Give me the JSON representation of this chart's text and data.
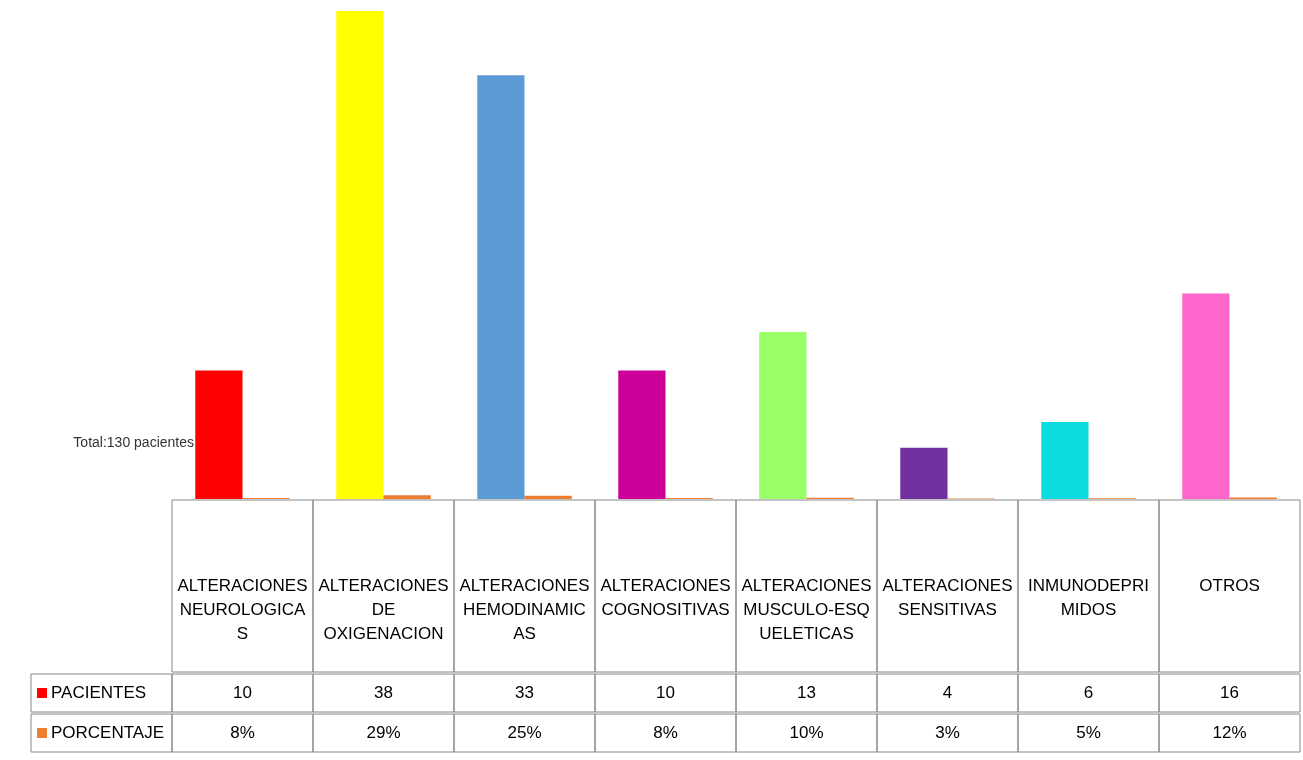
{
  "chart_data": {
    "type": "bar",
    "categories": [
      "ALTERACIONES NEUROLOGICAS",
      "ALTERACIONES DE OXIGENACION",
      "ALTERACIONES HEMODINAMICAS",
      "ALTERACIONES COGNOSITIVAS",
      "ALTERACIONES MUSCULO-ESQUELETICAS",
      "ALTERACIONES SENSITIVAS",
      "INMUNODEPRIMIDOS",
      "OTROS"
    ],
    "series": [
      {
        "name": "PACIENTES",
        "colors": [
          "#ff0000",
          "#ffff00",
          "#5b9bd5",
          "#cc0099",
          "#99ff66",
          "#7030a0",
          "#0cdce0",
          "#ff66cc"
        ],
        "values": [
          10,
          38,
          33,
          10,
          13,
          4,
          6,
          16
        ]
      },
      {
        "name": "PORCENTAJE",
        "color": "#ed7d31",
        "values": [
          0.08,
          0.29,
          0.25,
          0.08,
          0.1,
          0.03,
          0.05,
          0.12
        ],
        "value_labels": [
          "8%",
          "29%",
          "25%",
          "8%",
          "10%",
          "3%",
          "5%",
          "12%"
        ]
      }
    ],
    "data_labels": true,
    "annotations": [
      "Total:130 pacientes"
    ],
    "legend": "bottom left"
  }
}
